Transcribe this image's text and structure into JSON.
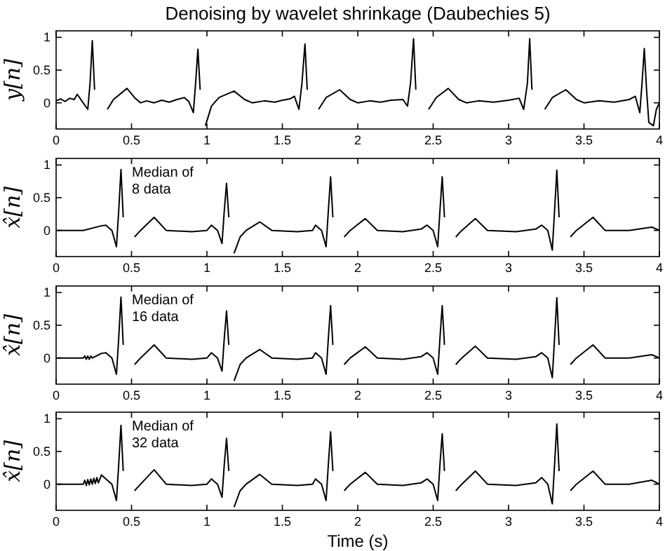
{
  "chart_data": [
    {
      "type": "line",
      "title": "Denoising by wavelet shrinkage (Daubechies 5)",
      "ylabel": "y[n]",
      "xlim": [
        0,
        4
      ],
      "xticks": [
        0,
        0.5,
        1,
        1.5,
        2,
        2.5,
        3,
        3.5,
        4
      ],
      "ylim": [
        -0.4,
        1.1
      ],
      "yticks": [
        0,
        0.5,
        1
      ],
      "series": [
        {
          "color": "#000000",
          "x": [
            0,
            0.03,
            0.06,
            0.09,
            0.12,
            0.14,
            0.17,
            0.21,
            0.225,
            0.24,
            0.255,
            0.27,
            0.3,
            0.34,
            0.38,
            0.47,
            0.52,
            0.56,
            0.6,
            0.65,
            0.7,
            0.75,
            0.8,
            0.85,
            0.88,
            0.91,
            0.925,
            0.94,
            0.955,
            0.97,
            0.99,
            1.03,
            1.08,
            1.18,
            1.25,
            1.3,
            1.38,
            1.45,
            1.5,
            1.55,
            1.58,
            1.61,
            1.63,
            1.65,
            1.665,
            1.68,
            1.7,
            1.74,
            1.79,
            1.88,
            1.95,
            2,
            2.08,
            2.15,
            2.22,
            2.3,
            2.33,
            2.35,
            2.37,
            2.385,
            2.4,
            2.43,
            2.47,
            2.52,
            2.6,
            2.67,
            2.72,
            2.8,
            2.9,
            3,
            3.07,
            3.1,
            3.125,
            3.14,
            3.155,
            3.17,
            3.2,
            3.24,
            3.29,
            3.38,
            3.45,
            3.5,
            3.6,
            3.7,
            3.8,
            3.84,
            3.87,
            3.885,
            3.9,
            3.915,
            3.93,
            3.96,
            3.98,
            4
          ],
          "values": [
            0.03,
            0.06,
            0.02,
            0.07,
            0.05,
            0.13,
            0.03,
            -0.1,
            0.3,
            0.95,
            0.2,
            null,
            null,
            -0.1,
            0.05,
            0.22,
            0.08,
            0,
            0.03,
            0,
            0.04,
            0.01,
            0.05,
            0.08,
            0.02,
            -0.15,
            0.3,
            0.82,
            0.2,
            null,
            -0.35,
            -0.05,
            0.08,
            0.18,
            0.05,
            0,
            0.03,
            0.01,
            0.04,
            0.06,
            0.1,
            -0.1,
            0.3,
            0.9,
            0.2,
            null,
            null,
            -0.1,
            0.08,
            0.2,
            0.05,
            0,
            0.03,
            0.01,
            0.04,
            0.05,
            -0.05,
            0.3,
            0.98,
            0.2,
            null,
            null,
            -0.1,
            0.08,
            0.22,
            0.05,
            0,
            0.03,
            0.01,
            0.04,
            0.07,
            -0.1,
            0.3,
            0.98,
            0.2,
            null,
            null,
            -0.1,
            0.08,
            0.2,
            0.05,
            0,
            0.03,
            0.01,
            0.05,
            0.1,
            -0.15,
            0.3,
            0.83,
            0.2,
            -0.3,
            -0.35,
            -0.1,
            0
          ]
        }
      ]
    },
    {
      "type": "line",
      "ylabel": "x̂[n]",
      "annotations": [
        "Median of\n8 data"
      ],
      "xlim": [
        0,
        4
      ],
      "xticks": [
        0,
        0.5,
        1,
        1.5,
        2,
        2.5,
        3,
        3.5,
        4
      ],
      "ylim": [
        -0.4,
        1.1
      ],
      "yticks": [
        0,
        0.5,
        1
      ],
      "series": [
        {
          "color": "#000000",
          "x": [
            0,
            0.18,
            0.3,
            0.33,
            0.37,
            0.4,
            0.415,
            0.43,
            0.445,
            0.46,
            0.48,
            0.52,
            0.56,
            0.65,
            0.73,
            0.9,
            1,
            1.03,
            1.07,
            1.1,
            1.115,
            1.13,
            1.145,
            1.16,
            1.18,
            1.22,
            1.26,
            1.35,
            1.43,
            1.6,
            1.7,
            1.72,
            1.76,
            1.79,
            1.805,
            1.82,
            1.835,
            1.85,
            1.87,
            1.91,
            1.95,
            2.05,
            2.13,
            2.3,
            2.42,
            2.46,
            2.5,
            2.53,
            2.545,
            2.56,
            2.575,
            2.59,
            2.61,
            2.65,
            2.69,
            2.78,
            2.86,
            3.05,
            3.18,
            3.22,
            3.26,
            3.29,
            3.305,
            3.32,
            3.335,
            3.35,
            3.37,
            3.41,
            3.45,
            3.56,
            3.64,
            3.8,
            3.95,
            4
          ],
          "values": [
            0,
            0,
            0.07,
            0.08,
            0,
            -0.25,
            0.3,
            0.93,
            0.2,
            null,
            null,
            -0.1,
            0,
            0.2,
            0,
            -0.02,
            0,
            0.08,
            0,
            -0.2,
            0.3,
            0.72,
            0.2,
            null,
            -0.35,
            -0.1,
            0,
            0.13,
            0,
            -0.02,
            0,
            0.08,
            0,
            -0.25,
            0.3,
            0.82,
            0.2,
            null,
            null,
            -0.1,
            0,
            0.18,
            0,
            -0.02,
            0.02,
            0.08,
            0,
            -0.25,
            0.3,
            0.82,
            0.2,
            null,
            null,
            -0.1,
            0,
            0.18,
            0,
            -0.02,
            0.02,
            0.08,
            0,
            -0.3,
            0.3,
            0.92,
            0.2,
            null,
            null,
            -0.1,
            0,
            0.2,
            0,
            0,
            0.05,
            0
          ]
        }
      ]
    },
    {
      "type": "line",
      "ylabel": "x̂[n]",
      "annotations": [
        "Median of\n16 data"
      ],
      "xlim": [
        0,
        4
      ],
      "xticks": [
        0,
        0.5,
        1,
        1.5,
        2,
        2.5,
        3,
        3.5,
        4
      ],
      "ylim": [
        -0.4,
        1.1
      ],
      "yticks": [
        0,
        0.5,
        1
      ],
      "series": [
        {
          "color": "#000000",
          "x": [
            0,
            0.18,
            0.19,
            0.2,
            0.21,
            0.22,
            0.23,
            0.24,
            0.3,
            0.33,
            0.37,
            0.4,
            0.415,
            0.43,
            0.445,
            0.46,
            0.48,
            0.52,
            0.56,
            0.65,
            0.73,
            0.9,
            1,
            1.03,
            1.07,
            1.1,
            1.115,
            1.13,
            1.145,
            1.16,
            1.18,
            1.22,
            1.26,
            1.35,
            1.43,
            1.6,
            1.7,
            1.72,
            1.76,
            1.79,
            1.805,
            1.82,
            1.835,
            1.85,
            1.87,
            1.91,
            1.95,
            2.05,
            2.13,
            2.3,
            2.42,
            2.46,
            2.5,
            2.53,
            2.545,
            2.56,
            2.575,
            2.59,
            2.61,
            2.65,
            2.69,
            2.78,
            2.86,
            3.05,
            3.18,
            3.22,
            3.26,
            3.29,
            3.305,
            3.32,
            3.335,
            3.35,
            3.37,
            3.41,
            3.45,
            3.56,
            3.64,
            3.8,
            3.95,
            4
          ],
          "values": [
            0,
            0,
            0.03,
            -0.02,
            0.03,
            -0.02,
            0.03,
            0,
            0.07,
            0.08,
            0,
            -0.25,
            0.3,
            0.93,
            0.2,
            null,
            null,
            -0.1,
            0,
            0.2,
            0,
            -0.02,
            0,
            0.08,
            0,
            -0.2,
            0.3,
            0.72,
            0.2,
            null,
            -0.35,
            -0.1,
            0,
            0.13,
            0,
            -0.02,
            0,
            0.08,
            0,
            -0.25,
            0.3,
            0.8,
            0.2,
            null,
            null,
            -0.1,
            0,
            0.17,
            0,
            -0.02,
            0.02,
            0.08,
            0,
            -0.25,
            0.3,
            0.8,
            0.2,
            null,
            null,
            -0.1,
            0,
            0.18,
            0,
            -0.02,
            0.02,
            0.08,
            0,
            -0.3,
            0.3,
            0.92,
            0.2,
            null,
            null,
            -0.1,
            0,
            0.2,
            0,
            0,
            0.05,
            0
          ]
        }
      ]
    },
    {
      "type": "line",
      "ylabel": "x̂[n]",
      "xlabel": "Time (s)",
      "annotations": [
        "Median of\n32 data"
      ],
      "xlim": [
        0,
        4
      ],
      "xticks": [
        0,
        0.5,
        1,
        1.5,
        2,
        2.5,
        3,
        3.5,
        4
      ],
      "ylim": [
        -0.4,
        1.1
      ],
      "yticks": [
        0,
        0.5,
        1
      ],
      "series": [
        {
          "color": "#000000",
          "x": [
            0,
            0.18,
            0.19,
            0.2,
            0.21,
            0.22,
            0.23,
            0.24,
            0.25,
            0.26,
            0.27,
            0.28,
            0.3,
            0.33,
            0.37,
            0.4,
            0.415,
            0.43,
            0.445,
            0.46,
            0.48,
            0.52,
            0.56,
            0.65,
            0.73,
            0.9,
            1,
            1.03,
            1.07,
            1.1,
            1.115,
            1.13,
            1.145,
            1.16,
            1.18,
            1.22,
            1.26,
            1.35,
            1.43,
            1.6,
            1.7,
            1.72,
            1.76,
            1.79,
            1.805,
            1.82,
            1.835,
            1.85,
            1.87,
            1.91,
            1.95,
            2.05,
            2.13,
            2.3,
            2.42,
            2.46,
            2.5,
            2.53,
            2.545,
            2.56,
            2.575,
            2.59,
            2.61,
            2.65,
            2.69,
            2.78,
            2.86,
            3.05,
            3.18,
            3.22,
            3.26,
            3.29,
            3.305,
            3.32,
            3.335,
            3.35,
            3.37,
            3.41,
            3.45,
            3.56,
            3.64,
            3.8,
            3.95,
            4
          ],
          "values": [
            0,
            0,
            0.06,
            -0.02,
            0.07,
            -0.01,
            0.08,
            0,
            0.09,
            0.01,
            0.1,
            0.02,
            0.14,
            0.08,
            0,
            -0.25,
            0.3,
            0.9,
            0.2,
            null,
            null,
            -0.1,
            0,
            0.22,
            0,
            -0.02,
            0,
            0.08,
            0,
            -0.2,
            0.3,
            0.7,
            0.2,
            null,
            -0.35,
            -0.1,
            0,
            0.15,
            0,
            -0.02,
            0,
            0.08,
            0,
            -0.25,
            0.3,
            0.8,
            0.2,
            null,
            null,
            -0.1,
            0,
            0.18,
            0,
            -0.02,
            0.02,
            0.08,
            0,
            -0.25,
            0.3,
            0.77,
            0.2,
            null,
            null,
            -0.1,
            0,
            0.2,
            0,
            -0.02,
            0.02,
            0.1,
            0,
            -0.3,
            0.3,
            0.92,
            0.2,
            null,
            null,
            -0.1,
            0,
            0.2,
            0,
            0,
            0.06,
            0
          ]
        }
      ]
    }
  ]
}
